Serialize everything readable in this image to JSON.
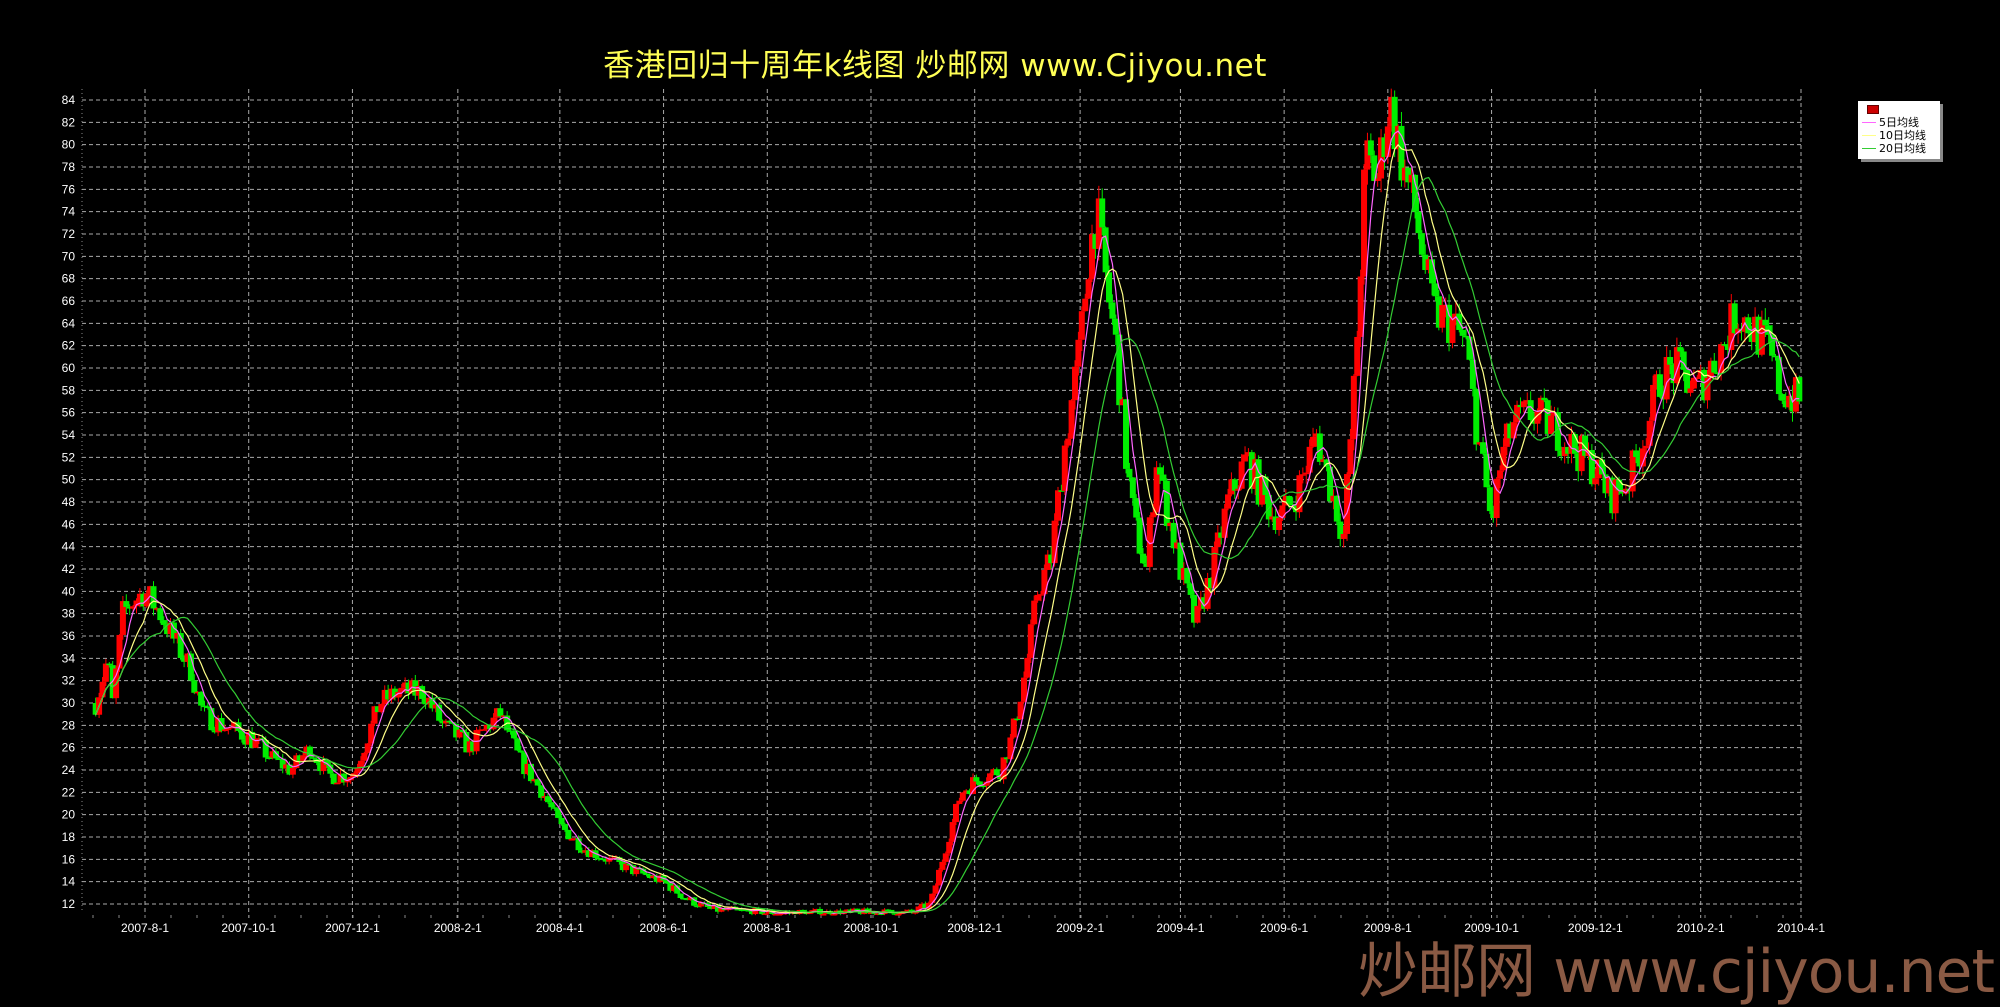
{
  "title": "香港回归十周年k线图  炒邮网 www.Cjiyou.net",
  "watermark": "炒邮网 www.cjiyou.net",
  "legend": {
    "candle_icon": "candlestick-icon",
    "items": [
      {
        "label": "5日均线",
        "color": "#ff66ff"
      },
      {
        "label": "10日均线",
        "color": "#ffff88"
      },
      {
        "label": "20日均线",
        "color": "#33cc33"
      }
    ]
  },
  "chart_data": {
    "type": "candlestick",
    "title": "香港回归十周年k线图  炒邮网 www.Cjiyou.net",
    "ylim": [
      11,
      85
    ],
    "yticks": [
      12,
      14,
      16,
      18,
      20,
      22,
      24,
      26,
      28,
      30,
      32,
      34,
      36,
      38,
      40,
      42,
      44,
      46,
      48,
      50,
      52,
      54,
      56,
      58,
      60,
      62,
      64,
      66,
      68,
      70,
      72,
      74,
      76,
      78,
      80,
      82,
      84
    ],
    "xticks": [
      "2007-8-1",
      "2007-10-1",
      "2007-12-1",
      "2008-2-1",
      "2008-4-1",
      "2008-6-1",
      "2008-8-1",
      "2008-10-1",
      "2008-12-1",
      "2009-2-1",
      "2009-4-1",
      "2009-6-1",
      "2009-8-1",
      "2009-10-1",
      "2009-12-1",
      "2010-2-1",
      "2010-4-1"
    ],
    "grid": true,
    "up_color": "#ff0000",
    "down_color": "#00ee00",
    "moving_averages": [
      5,
      10,
      20
    ],
    "close_trace": [
      [
        "2007-07-03",
        30
      ],
      [
        "2007-07-10",
        34
      ],
      [
        "2007-07-13",
        30
      ],
      [
        "2007-07-19",
        38
      ],
      [
        "2007-07-24",
        39
      ],
      [
        "2007-08-01",
        40
      ],
      [
        "2007-08-10",
        38
      ],
      [
        "2007-08-17",
        36
      ],
      [
        "2007-08-28",
        33
      ],
      [
        "2007-09-04",
        29
      ],
      [
        "2007-09-15",
        28
      ],
      [
        "2007-10-01",
        27
      ],
      [
        "2007-10-15",
        25
      ],
      [
        "2007-10-26",
        24
      ],
      [
        "2007-11-06",
        26
      ],
      [
        "2007-11-17",
        23.5
      ],
      [
        "2007-12-01",
        23.5
      ],
      [
        "2007-12-10",
        27
      ],
      [
        "2007-12-17",
        30
      ],
      [
        "2007-12-28",
        31
      ],
      [
        "2008-01-12",
        31
      ],
      [
        "2008-01-23",
        28
      ],
      [
        "2008-02-01",
        27
      ],
      [
        "2008-02-08",
        26
      ],
      [
        "2008-02-19",
        28
      ],
      [
        "2008-02-26",
        29
      ],
      [
        "2008-03-08",
        25
      ],
      [
        "2008-03-22",
        22
      ],
      [
        "2008-04-01",
        19
      ],
      [
        "2008-04-15",
        17
      ],
      [
        "2008-04-29",
        16
      ],
      [
        "2008-05-14",
        15
      ],
      [
        "2008-06-01",
        14
      ],
      [
        "2008-06-14",
        12.5
      ],
      [
        "2008-06-29",
        11.5
      ],
      [
        "2008-08-01",
        11.2
      ],
      [
        "2008-10-01",
        11.2
      ],
      [
        "2008-10-25",
        11.2
      ],
      [
        "2008-11-05",
        12
      ],
      [
        "2008-11-12",
        16
      ],
      [
        "2008-11-23",
        22
      ],
      [
        "2008-12-01",
        23
      ],
      [
        "2008-12-16",
        24
      ],
      [
        "2008-12-23",
        27
      ],
      [
        "2008-12-31",
        33
      ],
      [
        "2009-01-07",
        40
      ],
      [
        "2009-01-15",
        43
      ],
      [
        "2009-01-22",
        52
      ],
      [
        "2009-02-01",
        62
      ],
      [
        "2009-02-06",
        70
      ],
      [
        "2009-02-11",
        74
      ],
      [
        "2009-02-16",
        68
      ],
      [
        "2009-02-22",
        62
      ],
      [
        "2009-02-28",
        52
      ],
      [
        "2009-03-05",
        46
      ],
      [
        "2009-03-12",
        42
      ],
      [
        "2009-03-18",
        52
      ],
      [
        "2009-03-23",
        48
      ],
      [
        "2009-04-01",
        42
      ],
      [
        "2009-04-10",
        37
      ],
      [
        "2009-04-20",
        42
      ],
      [
        "2009-04-29",
        48
      ],
      [
        "2009-05-10",
        52
      ],
      [
        "2009-05-18",
        49
      ],
      [
        "2009-05-25",
        47
      ],
      [
        "2009-06-01",
        47
      ],
      [
        "2009-06-09",
        49
      ],
      [
        "2009-06-20",
        54
      ],
      [
        "2009-06-27",
        50
      ],
      [
        "2009-07-06",
        45
      ],
      [
        "2009-07-13",
        60
      ],
      [
        "2009-07-19",
        79
      ],
      [
        "2009-07-26",
        77
      ],
      [
        "2009-08-02",
        84
      ],
      [
        "2009-08-10",
        78
      ],
      [
        "2009-08-17",
        74
      ],
      [
        "2009-08-28",
        65
      ],
      [
        "2009-09-08",
        64
      ],
      [
        "2009-09-16",
        62
      ],
      [
        "2009-09-22",
        55
      ],
      [
        "2009-10-01",
        46
      ],
      [
        "2009-10-07",
        52
      ],
      [
        "2009-10-14",
        55
      ],
      [
        "2009-10-25",
        56
      ],
      [
        "2009-11-05",
        55
      ],
      [
        "2009-11-17",
        53
      ],
      [
        "2009-12-01",
        51
      ],
      [
        "2009-12-10",
        48.5
      ],
      [
        "2009-12-21",
        50
      ],
      [
        "2010-01-01",
        55
      ],
      [
        "2010-01-08",
        59
      ],
      [
        "2010-01-17",
        60
      ],
      [
        "2010-01-30",
        58
      ],
      [
        "2010-02-14",
        62
      ],
      [
        "2010-02-22",
        65
      ],
      [
        "2010-03-01",
        64
      ],
      [
        "2010-03-12",
        62
      ],
      [
        "2010-03-20",
        58
      ],
      [
        "2010-04-01",
        57
      ]
    ]
  }
}
